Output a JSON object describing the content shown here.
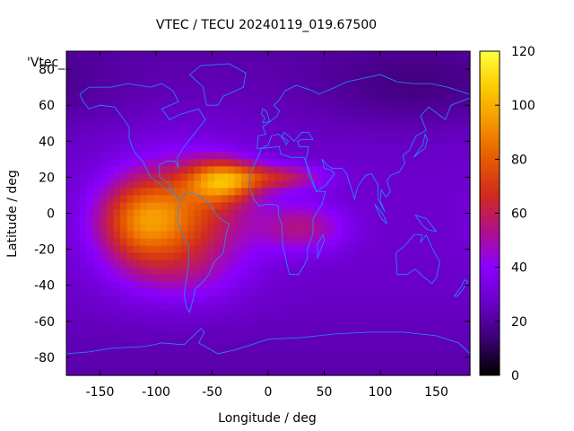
{
  "chart_data": {
    "type": "heatmap",
    "title": "VTEC / TECU 20240119_019.67500",
    "xlabel": "Longitude / deg",
    "ylabel": "Latitude / deg",
    "key_label": "'Vtec_",
    "xlim": [
      -180,
      180
    ],
    "ylim": [
      -90,
      90
    ],
    "x_ticks": [
      -150,
      -100,
      -50,
      0,
      50,
      100,
      150
    ],
    "y_ticks": [
      -80,
      -60,
      -40,
      -20,
      0,
      20,
      40,
      60,
      80
    ],
    "colorbar": {
      "range": [
        0,
        120
      ],
      "ticks": [
        0,
        20,
        40,
        60,
        80,
        100,
        120
      ],
      "palette": [
        "#000000",
        "#3a0070",
        "#6a00c8",
        "#8a00ff",
        "#b0108a",
        "#d02a20",
        "#e65a00",
        "#f59500",
        "#fbcc00",
        "#ffff40"
      ]
    },
    "grid": false,
    "overlay": "coastlines",
    "coastline_color": "#1e90ff",
    "field": {
      "description_units": "TECU",
      "background": 22,
      "features": [
        {
          "lon": -115,
          "lat": -5,
          "sigma_lon": 28,
          "sigma_lat": 17,
          "amp": 45
        },
        {
          "lon": -70,
          "lat": 0,
          "sigma_lon": 38,
          "sigma_lat": 22,
          "amp": 40
        },
        {
          "lon": -40,
          "lat": 18,
          "sigma_lon": 22,
          "sigma_lat": 8,
          "amp": 50
        },
        {
          "lon": 10,
          "lat": 20,
          "sigma_lon": 30,
          "sigma_lat": 5,
          "amp": 30
        },
        {
          "lon": 30,
          "lat": -8,
          "sigma_lon": 28,
          "sigma_lat": 10,
          "amp": 25
        },
        {
          "lon": -80,
          "lat": -35,
          "sigma_lon": 40,
          "sigma_lat": 12,
          "amp": 12
        },
        {
          "lon": 130,
          "lat": 70,
          "sigma_lon": 60,
          "sigma_lat": 15,
          "amp": -8
        }
      ]
    }
  }
}
